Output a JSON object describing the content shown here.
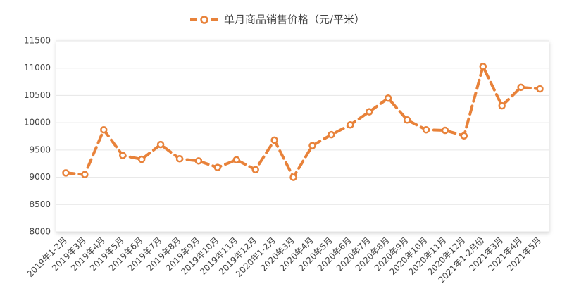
{
  "chart_data": {
    "type": "line",
    "categories": [
      "2019年1-2月",
      "2019年3月",
      "2019年4月",
      "2019年5月",
      "2019年6月",
      "2019年7月",
      "2019年8月",
      "2019年9月",
      "2019年10月",
      "2019年11月",
      "2019年12月",
      "2020年1-2月",
      "2020年3月",
      "2020年4月",
      "2020年5月",
      "2020年6月",
      "2020年7月",
      "2020年8月",
      "2020年9月",
      "2020年10月",
      "2020年11月",
      "2020年12月",
      "2021年1-2月份",
      "2021年3月",
      "2021年4月",
      "2021年5月"
    ],
    "series": [
      {
        "name": "单月商品销售价格（元/平米）",
        "color": "#e8823a",
        "values": [
          9080,
          9050,
          9870,
          9400,
          9330,
          9600,
          9340,
          9300,
          9180,
          9320,
          9140,
          9680,
          9000,
          9580,
          9780,
          9960,
          10200,
          10450,
          10050,
          9870,
          9860,
          9760,
          11030,
          10310,
          10650,
          10620
        ]
      }
    ],
    "ylim": [
      8000,
      11500
    ],
    "yticks": [
      8000,
      8500,
      9000,
      9500,
      10000,
      10500,
      11000,
      11500
    ],
    "grid": true,
    "legend": "top"
  }
}
